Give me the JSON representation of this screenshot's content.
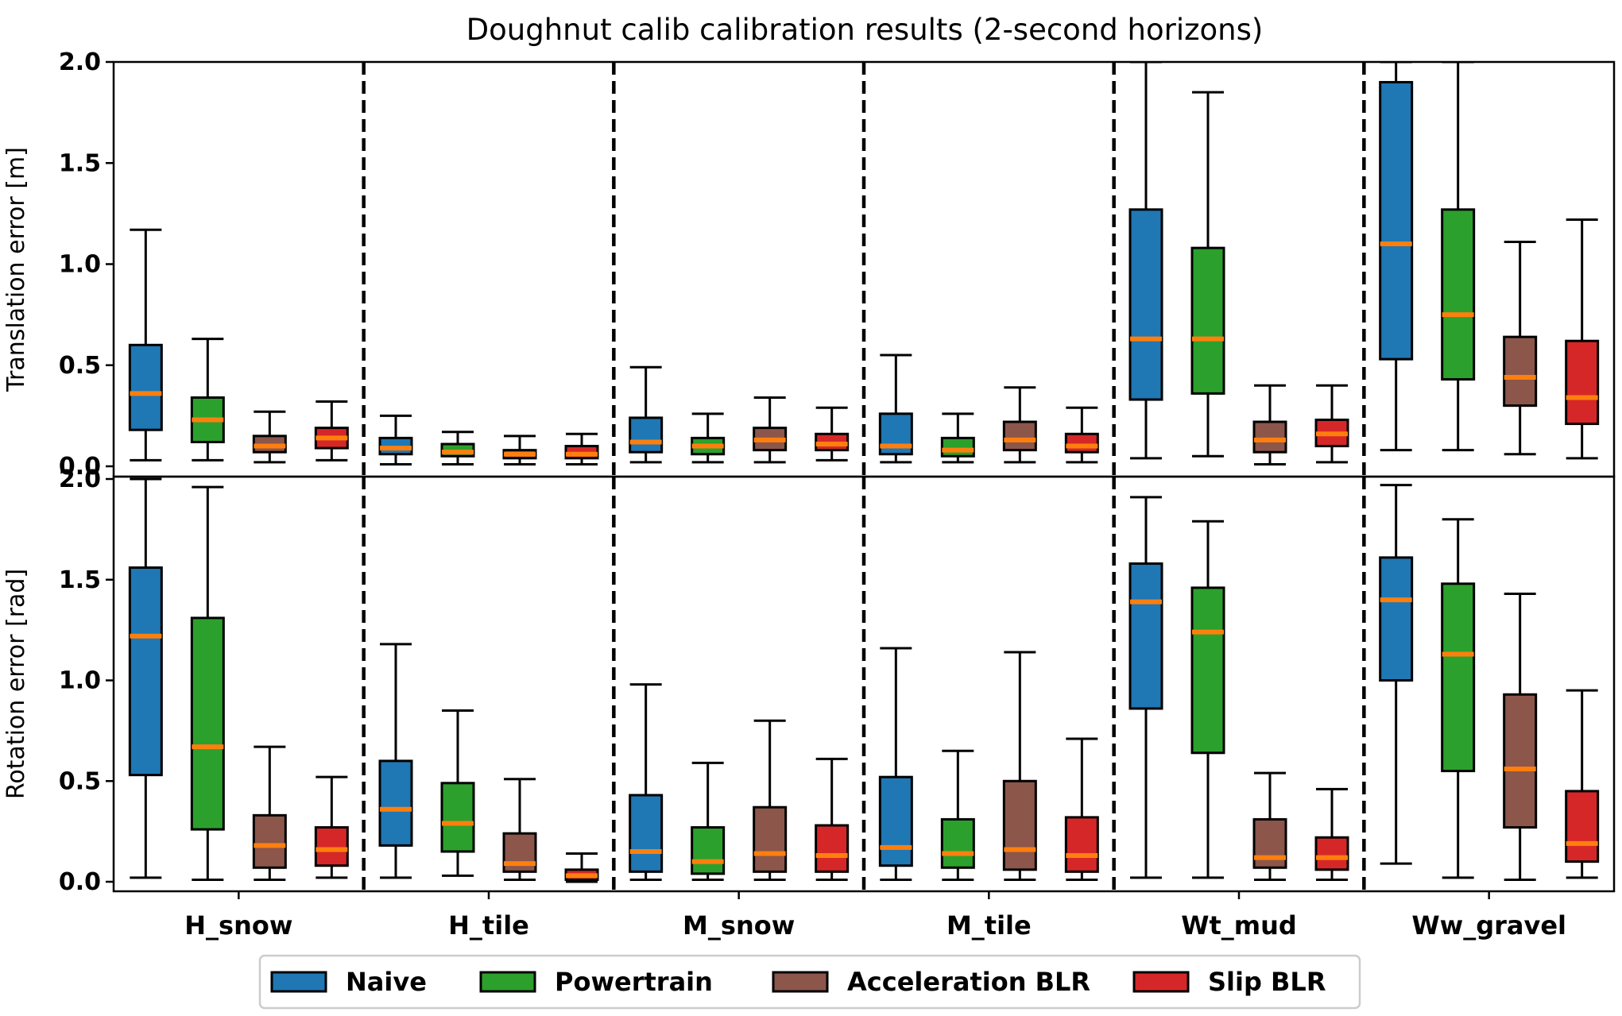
{
  "chart_data": {
    "type": "box",
    "title": "Doughnut calib calibration results (2-second horizons)",
    "categories": [
      "H_snow",
      "H_tile",
      "M_snow",
      "M_tile",
      "Wt_mud",
      "Ww_gravel"
    ],
    "series_names": [
      "Naive",
      "Powertrain",
      "Acceleration BLR",
      "Slip BLR"
    ],
    "colors": {
      "Naive": "#1f77b4",
      "Powertrain": "#2ca02c",
      "Acceleration BLR": "#8c564b",
      "Slip BLR": "#d62728",
      "median": "#ff7f0e"
    },
    "legend_position": "bottom-center",
    "separators": "dashed vertical lines between categories",
    "panels": [
      {
        "ylabel": "Translation error [m]",
        "ylim": [
          0,
          2.0
        ],
        "yticks": [
          "0.0",
          "0.5",
          "1.0",
          "1.5",
          "2.0"
        ],
        "boxes": {
          "H_snow": [
            {
              "whislo": 0.03,
              "q1": 0.18,
              "med": 0.36,
              "q3": 0.6,
              "whishi": 1.17
            },
            {
              "whislo": 0.03,
              "q1": 0.12,
              "med": 0.23,
              "q3": 0.34,
              "whishi": 0.63
            },
            {
              "whislo": 0.02,
              "q1": 0.07,
              "med": 0.1,
              "q3": 0.15,
              "whishi": 0.27
            },
            {
              "whislo": 0.03,
              "q1": 0.09,
              "med": 0.14,
              "q3": 0.19,
              "whishi": 0.32
            }
          ],
          "H_tile": [
            {
              "whislo": 0.01,
              "q1": 0.06,
              "med": 0.09,
              "q3": 0.14,
              "whishi": 0.25
            },
            {
              "whislo": 0.01,
              "q1": 0.05,
              "med": 0.07,
              "q3": 0.11,
              "whishi": 0.17
            },
            {
              "whislo": 0.01,
              "q1": 0.04,
              "med": 0.06,
              "q3": 0.08,
              "whishi": 0.15
            },
            {
              "whislo": 0.01,
              "q1": 0.04,
              "med": 0.06,
              "q3": 0.1,
              "whishi": 0.16
            }
          ],
          "M_snow": [
            {
              "whislo": 0.02,
              "q1": 0.07,
              "med": 0.12,
              "q3": 0.24,
              "whishi": 0.49
            },
            {
              "whislo": 0.02,
              "q1": 0.06,
              "med": 0.1,
              "q3": 0.14,
              "whishi": 0.26
            },
            {
              "whislo": 0.02,
              "q1": 0.08,
              "med": 0.13,
              "q3": 0.19,
              "whishi": 0.34
            },
            {
              "whislo": 0.03,
              "q1": 0.08,
              "med": 0.11,
              "q3": 0.16,
              "whishi": 0.29
            }
          ],
          "M_tile": [
            {
              "whislo": 0.02,
              "q1": 0.06,
              "med": 0.1,
              "q3": 0.26,
              "whishi": 0.55
            },
            {
              "whislo": 0.02,
              "q1": 0.05,
              "med": 0.08,
              "q3": 0.14,
              "whishi": 0.26
            },
            {
              "whislo": 0.02,
              "q1": 0.08,
              "med": 0.13,
              "q3": 0.22,
              "whishi": 0.39
            },
            {
              "whislo": 0.02,
              "q1": 0.07,
              "med": 0.1,
              "q3": 0.16,
              "whishi": 0.29
            }
          ],
          "Wt_mud": [
            {
              "whislo": 0.04,
              "q1": 0.33,
              "med": 0.63,
              "q3": 1.27,
              "whishi": 2.0
            },
            {
              "whislo": 0.05,
              "q1": 0.36,
              "med": 0.63,
              "q3": 1.08,
              "whishi": 1.85
            },
            {
              "whislo": 0.01,
              "q1": 0.07,
              "med": 0.13,
              "q3": 0.22,
              "whishi": 0.4
            },
            {
              "whislo": 0.02,
              "q1": 0.1,
              "med": 0.16,
              "q3": 0.23,
              "whishi": 0.4
            }
          ],
          "Ww_gravel": [
            {
              "whislo": 0.08,
              "q1": 0.53,
              "med": 1.1,
              "q3": 1.9,
              "whishi": 2.0
            },
            {
              "whislo": 0.08,
              "q1": 0.43,
              "med": 0.75,
              "q3": 1.27,
              "whishi": 2.0
            },
            {
              "whislo": 0.06,
              "q1": 0.3,
              "med": 0.44,
              "q3": 0.64,
              "whishi": 1.11
            },
            {
              "whislo": 0.04,
              "q1": 0.21,
              "med": 0.34,
              "q3": 0.62,
              "whishi": 1.22
            }
          ]
        }
      },
      {
        "ylabel": "Rotation error [rad]",
        "ylim": [
          0,
          2.0
        ],
        "yticks": [
          "0.0",
          "0.5",
          "1.0",
          "1.5",
          "2.0"
        ],
        "boxes": {
          "H_snow": [
            {
              "whislo": 0.02,
              "q1": 0.53,
              "med": 1.22,
              "q3": 1.56,
              "whishi": 2.0
            },
            {
              "whislo": 0.01,
              "q1": 0.26,
              "med": 0.67,
              "q3": 1.31,
              "whishi": 1.96
            },
            {
              "whislo": 0.01,
              "q1": 0.07,
              "med": 0.18,
              "q3": 0.33,
              "whishi": 0.67
            },
            {
              "whislo": 0.02,
              "q1": 0.08,
              "med": 0.16,
              "q3": 0.27,
              "whishi": 0.52
            }
          ],
          "H_tile": [
            {
              "whislo": 0.02,
              "q1": 0.18,
              "med": 0.36,
              "q3": 0.6,
              "whishi": 1.18
            },
            {
              "whislo": 0.03,
              "q1": 0.15,
              "med": 0.29,
              "q3": 0.49,
              "whishi": 0.85
            },
            {
              "whislo": 0.01,
              "q1": 0.05,
              "med": 0.09,
              "q3": 0.24,
              "whishi": 0.51
            },
            {
              "whislo": 0.0,
              "q1": 0.01,
              "med": 0.03,
              "q3": 0.06,
              "whishi": 0.14
            }
          ],
          "M_snow": [
            {
              "whislo": 0.01,
              "q1": 0.05,
              "med": 0.15,
              "q3": 0.43,
              "whishi": 0.98
            },
            {
              "whislo": 0.01,
              "q1": 0.04,
              "med": 0.1,
              "q3": 0.27,
              "whishi": 0.59
            },
            {
              "whislo": 0.01,
              "q1": 0.05,
              "med": 0.14,
              "q3": 0.37,
              "whishi": 0.8
            },
            {
              "whislo": 0.01,
              "q1": 0.05,
              "med": 0.13,
              "q3": 0.28,
              "whishi": 0.61
            }
          ],
          "M_tile": [
            {
              "whislo": 0.01,
              "q1": 0.08,
              "med": 0.17,
              "q3": 0.52,
              "whishi": 1.16
            },
            {
              "whislo": 0.01,
              "q1": 0.07,
              "med": 0.14,
              "q3": 0.31,
              "whishi": 0.65
            },
            {
              "whislo": 0.01,
              "q1": 0.06,
              "med": 0.16,
              "q3": 0.5,
              "whishi": 1.14
            },
            {
              "whislo": 0.01,
              "q1": 0.05,
              "med": 0.13,
              "q3": 0.32,
              "whishi": 0.71
            }
          ],
          "Wt_mud": [
            {
              "whislo": 0.02,
              "q1": 0.86,
              "med": 1.39,
              "q3": 1.58,
              "whishi": 1.91
            },
            {
              "whislo": 0.02,
              "q1": 0.64,
              "med": 1.24,
              "q3": 1.46,
              "whishi": 1.79
            },
            {
              "whislo": 0.01,
              "q1": 0.07,
              "med": 0.12,
              "q3": 0.31,
              "whishi": 0.54
            },
            {
              "whislo": 0.01,
              "q1": 0.06,
              "med": 0.12,
              "q3": 0.22,
              "whishi": 0.46
            }
          ],
          "Ww_gravel": [
            {
              "whislo": 0.09,
              "q1": 1.0,
              "med": 1.4,
              "q3": 1.61,
              "whishi": 1.97
            },
            {
              "whislo": 0.02,
              "q1": 0.55,
              "med": 1.13,
              "q3": 1.48,
              "whishi": 1.8
            },
            {
              "whislo": 0.01,
              "q1": 0.27,
              "med": 0.56,
              "q3": 0.93,
              "whishi": 1.43
            },
            {
              "whislo": 0.02,
              "q1": 0.1,
              "med": 0.19,
              "q3": 0.45,
              "whishi": 0.95
            }
          ]
        }
      }
    ]
  }
}
